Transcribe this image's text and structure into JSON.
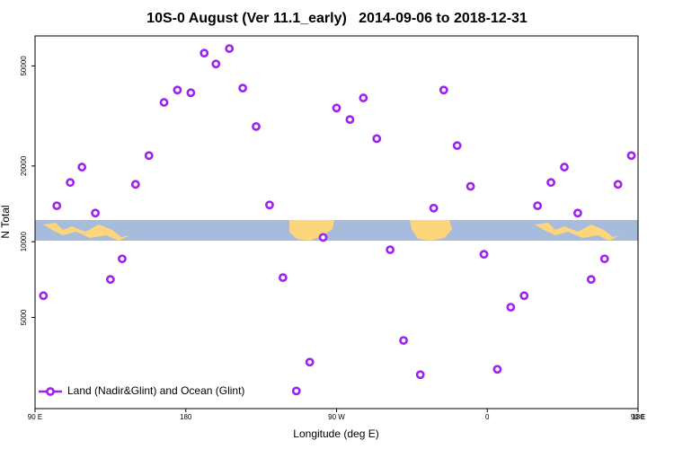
{
  "chart_data": {
    "type": "scatter",
    "title": "10S-0 August (Ver 11.1_early)   2014-09-06 to 2018-12-31",
    "xlabel": "Longitude (deg E)",
    "ylabel": "N Total",
    "log_y": true,
    "legend": "lower left",
    "xlim": [
      90,
      450
    ],
    "ylim": [
      2170,
      65800
    ],
    "xticks": [
      {
        "value": 90,
        "label": "90 E"
      },
      {
        "value": 180,
        "label": "180"
      },
      {
        "value": 270,
        "label": "90 W"
      },
      {
        "value": 360,
        "label": "0"
      },
      {
        "value": 450,
        "label": "90 E"
      },
      {
        "value": 540,
        "label": "180"
      }
    ],
    "yticks": [
      5000,
      10000,
      20000,
      50000
    ],
    "series": [
      {
        "name": "Land (Nadir&Glint) and Ocean (Glint)",
        "color": "#a020f0",
        "x": [
          95,
          103,
          111,
          118,
          126,
          135,
          142,
          150,
          158,
          167,
          175,
          183,
          191,
          198,
          206,
          214,
          222,
          230,
          238,
          246,
          254,
          262,
          270,
          278,
          286,
          294,
          302,
          310,
          320,
          328,
          334,
          342,
          350,
          358,
          366,
          374,
          382,
          390,
          398,
          406,
          414,
          422,
          430,
          438,
          446
        ],
        "values": [
          6100,
          13900,
          17200,
          19800,
          13000,
          7080,
          8550,
          16900,
          22000,
          35800,
          40100,
          39100,
          56200,
          50900,
          58600,
          40800,
          28700,
          14000,
          7200,
          2550,
          3320,
          10400,
          34000,
          30600,
          37300,
          25700,
          9290,
          4050,
          2960,
          13600,
          40100,
          24100,
          16600,
          8910,
          3110,
          5490,
          6100,
          13900,
          17200,
          19800,
          13000,
          7080,
          8550,
          16900,
          22000
        ]
      }
    ]
  }
}
